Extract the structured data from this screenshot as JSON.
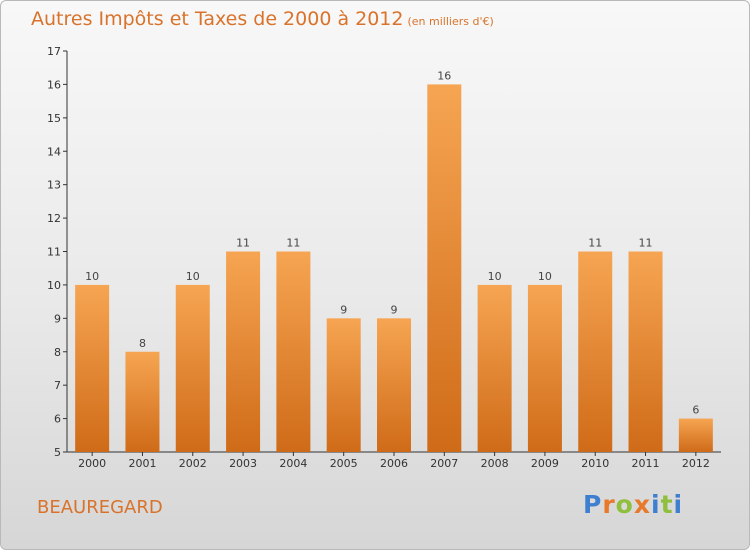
{
  "title": "Autres Impôts et Taxes de 2000 à 2012",
  "unit_label": "(en milliers d'€)",
  "place_name": "BEAUREGARD",
  "logo": {
    "letters": [
      "P",
      "r",
      "o",
      "x",
      "i",
      "t",
      "i"
    ],
    "colors": [
      "#3f7fd0",
      "#e8792a",
      "#8fbf3c",
      "#e8792a",
      "#3f7fd0",
      "#8fbf3c",
      "#3f7fd0"
    ]
  },
  "colors": {
    "accent": "#d9732c",
    "bar_light": "#f6a552",
    "bar_dark": "#cf6b18"
  },
  "chart_data": {
    "type": "bar",
    "categories": [
      "2000",
      "2001",
      "2002",
      "2003",
      "2004",
      "2005",
      "2006",
      "2007",
      "2008",
      "2009",
      "2010",
      "2011",
      "2012"
    ],
    "values": [
      10,
      8,
      10,
      11,
      11,
      9,
      9,
      16,
      10,
      10,
      11,
      11,
      6
    ],
    "data_labels": [
      "10",
      "8",
      "10",
      "11",
      "11",
      "9",
      "9",
      "16",
      "10",
      "10",
      "11",
      "11",
      "6"
    ],
    "yticks": [
      "5",
      "6",
      "7",
      "8",
      "9",
      "10",
      "11",
      "12",
      "13",
      "14",
      "15",
      "16",
      "17"
    ],
    "ylim": [
      5,
      17
    ],
    "grid": false,
    "legend": "none"
  }
}
